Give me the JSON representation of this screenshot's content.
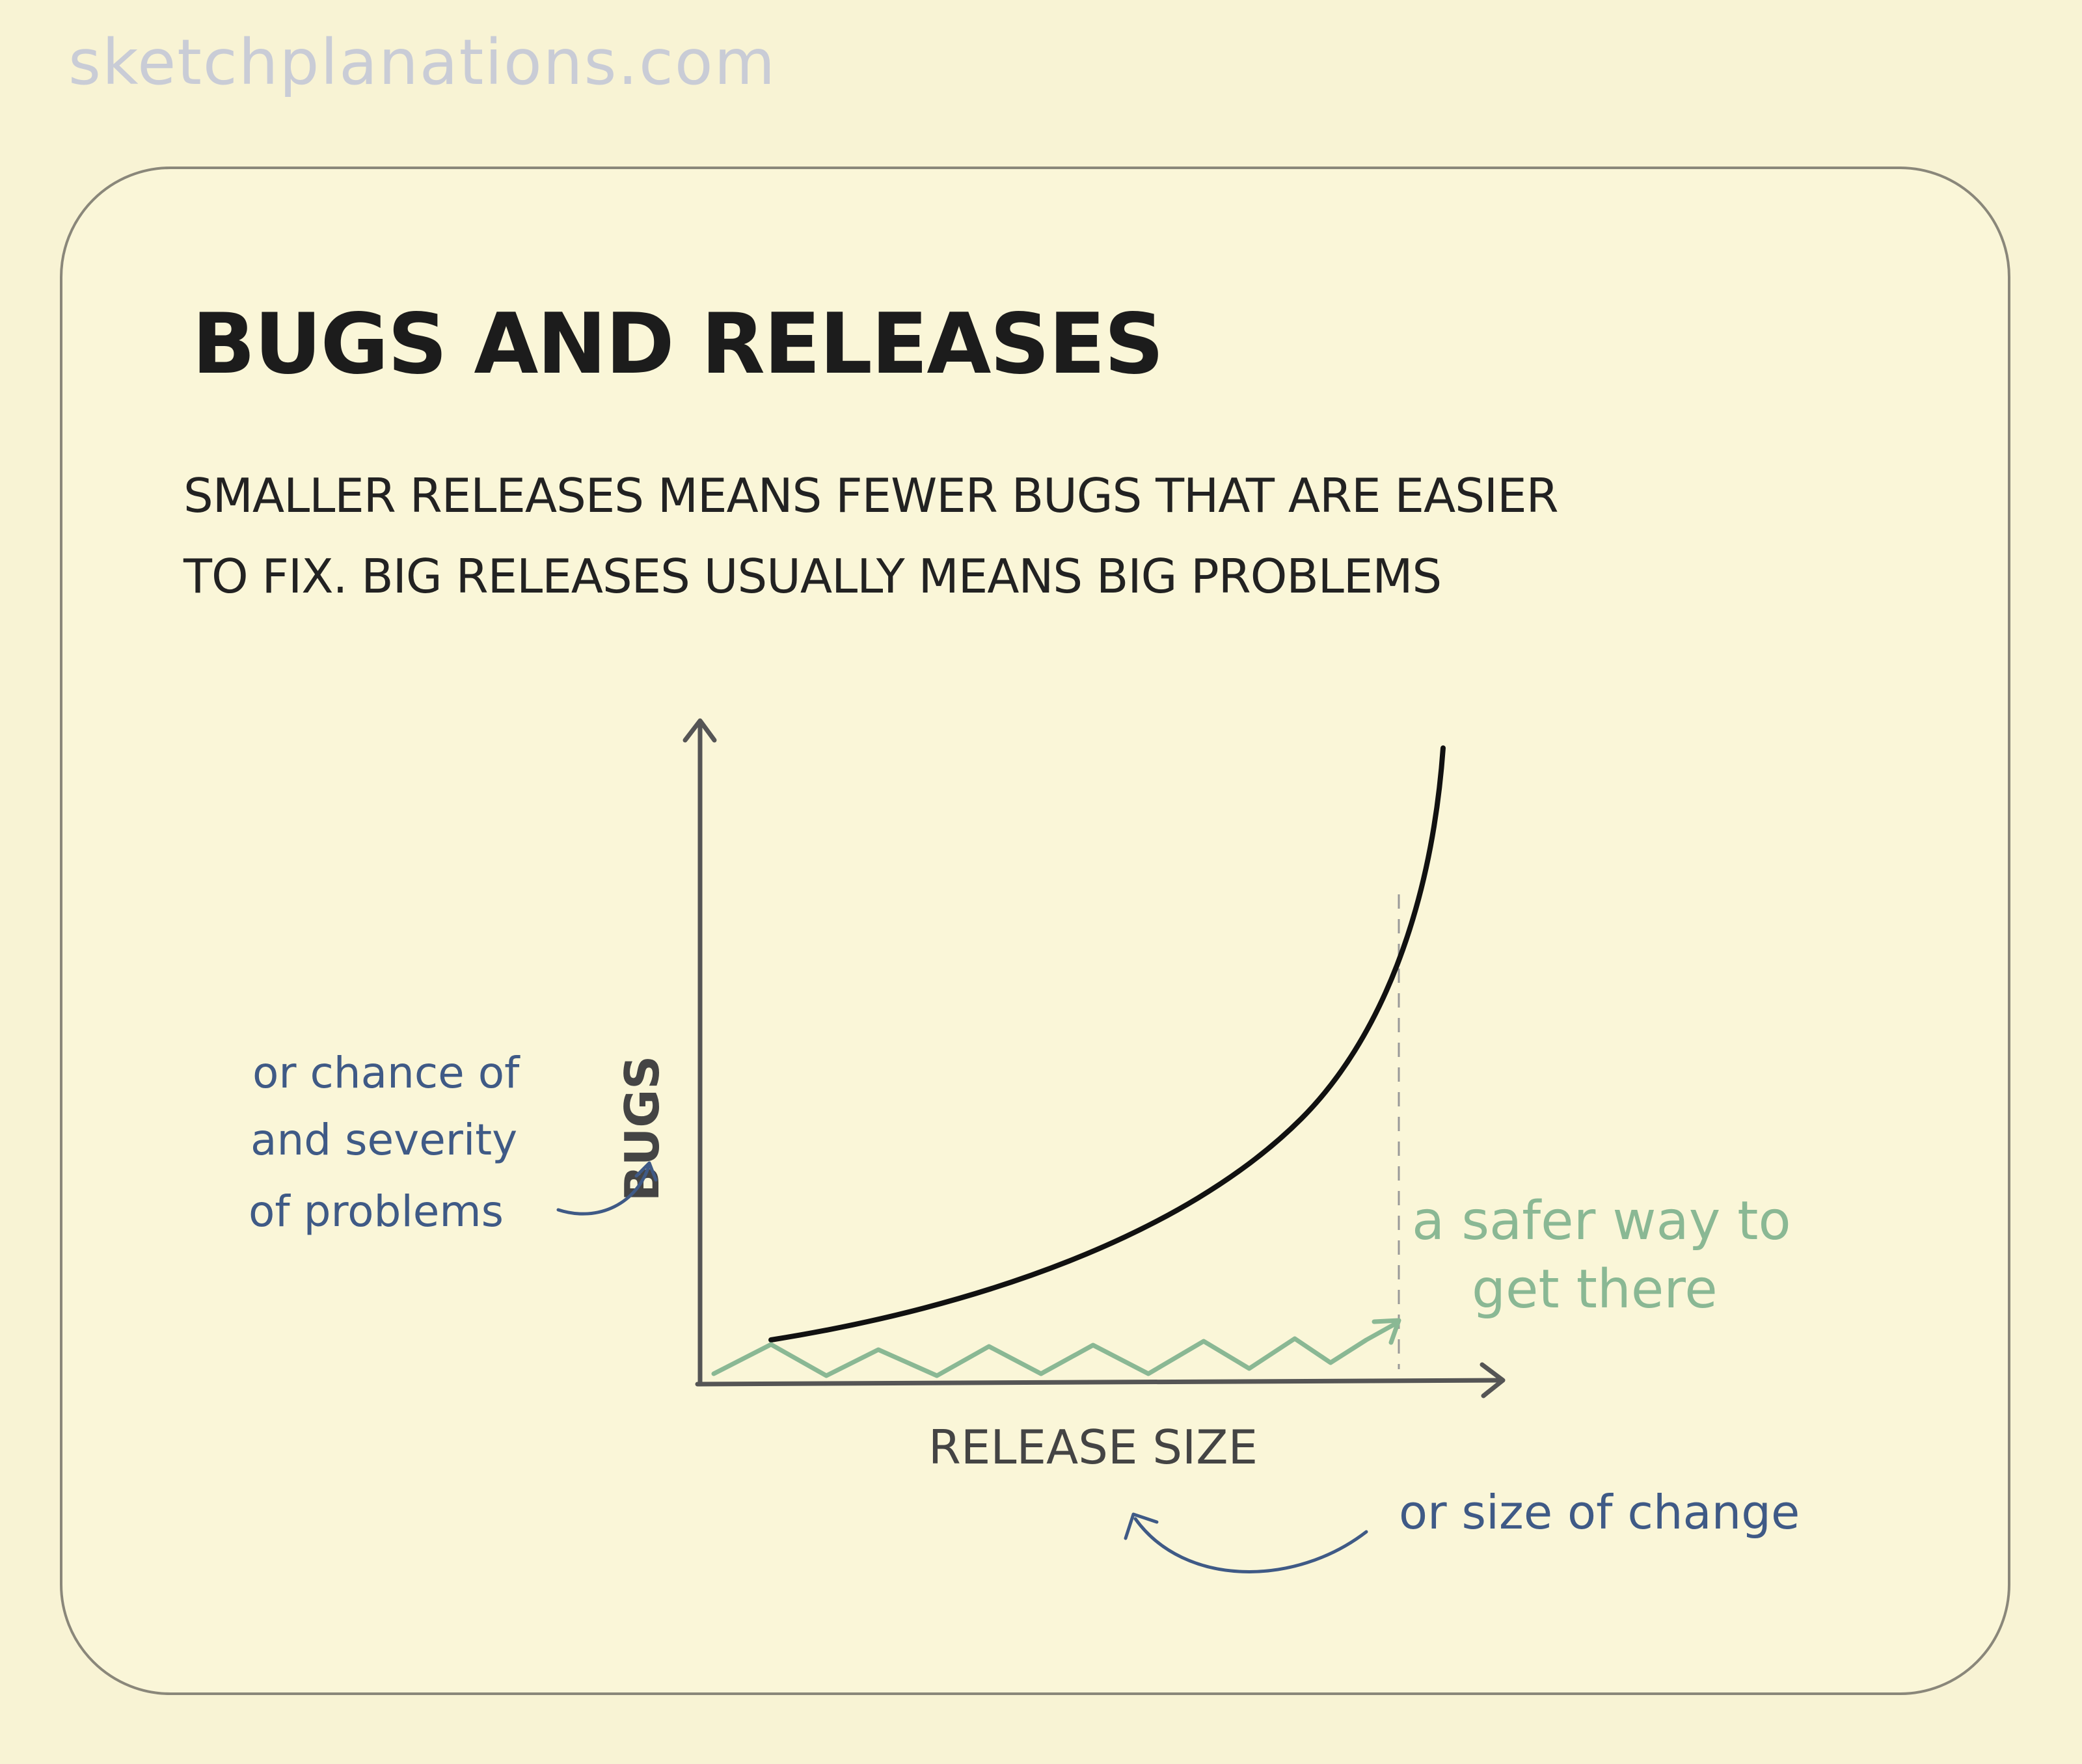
{
  "watermark": "sketchplanations.com",
  "title": "BUGS AND RELEASES",
  "subtitle": {
    "line1": "SMALLER RELEASES MEANS FEWER BUGS THAT ARE EASIER",
    "line2": "TO FIX. BIG RELEASES USUALLY MEANS BIG PROBLEMS"
  },
  "axes": {
    "y_label": "BUGS",
    "x_label": "RELEASE SIZE"
  },
  "annotations": {
    "y_note": [
      "or chance of",
      "and severity",
      "of problems"
    ],
    "x_note": "or size of change",
    "safer_way": [
      "a safer way to",
      "get there"
    ]
  },
  "colors": {
    "ink": "#111111",
    "axis": "#555555",
    "blue_note": "#3f5a86",
    "green_note": "#8ab894",
    "background": "#f8f3d4"
  }
}
